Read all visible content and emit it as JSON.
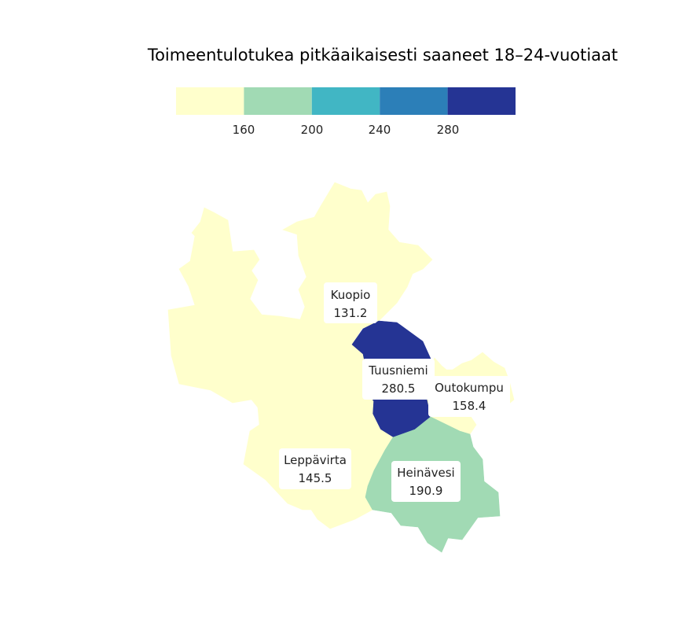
{
  "title": "Toimeentulotukea pitkäaikaisesti saaneet 18–24-vuotiaat",
  "legend": {
    "bins": [
      {
        "color": "#ffffcc"
      },
      {
        "color": "#a1dab4"
      },
      {
        "color": "#41b6c4"
      },
      {
        "color": "#2c7fb8"
      },
      {
        "color": "#253494"
      }
    ],
    "breaks": [
      "160",
      "200",
      "240",
      "280"
    ]
  },
  "regions": [
    {
      "key": "kuopio",
      "name": "Kuopio",
      "value": "131.2",
      "color": "#ffffcc"
    },
    {
      "key": "tuusniemi",
      "name": "Tuusniemi",
      "value": "280.5",
      "color": "#253494"
    },
    {
      "key": "outokumpu",
      "name": "Outokumpu",
      "value": "158.4",
      "color": "#ffffcc"
    },
    {
      "key": "leppavirta",
      "name": "Leppävirta",
      "value": "145.5",
      "color": "#ffffcc"
    },
    {
      "key": "heinavesi",
      "name": "Heinävesi",
      "value": "190.9",
      "color": "#a1dab4"
    }
  ]
}
